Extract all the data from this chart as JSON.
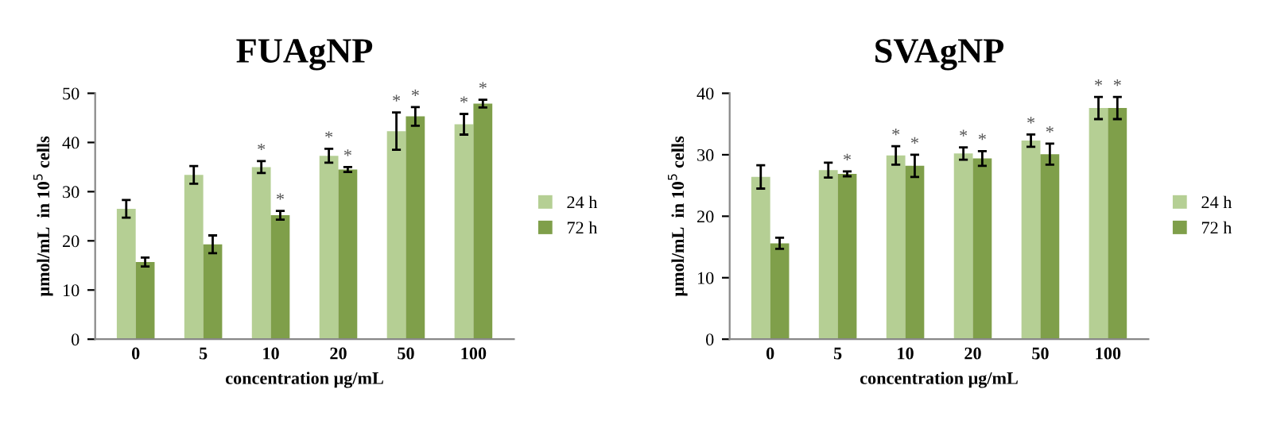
{
  "chart_data": [
    {
      "type": "bar",
      "title": "FUAgNP",
      "xlabel": "concentration μg/mL",
      "ylabel": "μmol/mL  in 10$^{5}$ cells",
      "categories": [
        "0",
        "5",
        "10",
        "20",
        "50",
        "100"
      ],
      "ylim": [
        0,
        50
      ],
      "yticks": [
        0,
        10,
        20,
        30,
        40,
        50
      ],
      "legend": "right",
      "grid": false,
      "series": [
        {
          "name": "24 h",
          "color": "#b5cf94",
          "values": [
            26.5,
            33.4,
            35,
            37.3,
            42.3,
            43.7
          ],
          "errors": [
            1.8,
            1.8,
            1.2,
            1.4,
            3.8,
            2.1
          ],
          "value_labels": [
            null,
            null,
            "*",
            "*",
            "*",
            "*"
          ]
        },
        {
          "name": "72 h",
          "color": "#7f9f4a",
          "values": [
            15.7,
            19.3,
            25.2,
            34.5,
            45.3,
            47.9
          ],
          "errors": [
            0.9,
            1.8,
            0.9,
            0.5,
            1.9,
            0.8
          ],
          "value_labels": [
            null,
            null,
            "*",
            "*",
            "*",
            "*"
          ]
        }
      ]
    },
    {
      "type": "bar",
      "title": "SVAgNP",
      "xlabel": "concentration μg/mL",
      "ylabel": "μmol/mL  in 10$^{5}$ cells",
      "categories": [
        "0",
        "5",
        "10",
        "20",
        "50",
        "100"
      ],
      "ylim": [
        0,
        40
      ],
      "yticks": [
        0,
        10,
        20,
        30,
        40
      ],
      "legend": "right",
      "grid": false,
      "series": [
        {
          "name": "24 h",
          "color": "#b5cf94",
          "values": [
            26.4,
            27.5,
            29.9,
            30.2,
            32.3,
            37.6
          ],
          "errors": [
            1.9,
            1.2,
            1.5,
            1.0,
            1.0,
            1.8
          ],
          "value_labels": [
            null,
            null,
            "*",
            "*",
            "*",
            "*"
          ]
        },
        {
          "name": "72 h",
          "color": "#7f9f4a",
          "values": [
            15.6,
            26.9,
            28.2,
            29.4,
            30.1,
            37.6
          ],
          "errors": [
            0.9,
            0.4,
            1.8,
            1.2,
            1.7,
            1.8
          ],
          "value_labels": [
            null,
            "*",
            "*",
            "*",
            "*",
            "*"
          ]
        }
      ]
    }
  ]
}
